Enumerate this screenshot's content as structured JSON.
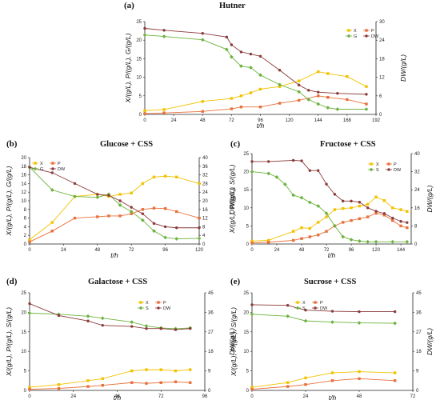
{
  "colors": {
    "X": "#f2c200",
    "P": "#e8703a",
    "G": "#6db33f",
    "DW": "#8b3a3a"
  },
  "chart_data": [
    {
      "id": "a",
      "letter": "(a)",
      "title": "Hutner",
      "type": "line",
      "xlabel": "t/h",
      "ylabel": "X/(g/L), P/(g/L), G/(g/L)",
      "y2label": "DW/(g/L)",
      "xticks": [
        0,
        24,
        48,
        72,
        96,
        120,
        144,
        168,
        192
      ],
      "yticks": [
        0,
        5,
        10,
        15,
        20,
        25
      ],
      "y2ticks": [
        0,
        6,
        12,
        18,
        24,
        30
      ],
      "xlim": [
        0,
        192
      ],
      "ylim": [
        0,
        25
      ],
      "y2lim": [
        0,
        30
      ],
      "legend_position": "top-right",
      "series": [
        {
          "name": "X",
          "color": "X",
          "axis": "left",
          "x": [
            0,
            16,
            48,
            72,
            80,
            88,
            96,
            112,
            128,
            144,
            152,
            168,
            184
          ],
          "y": [
            1.0,
            1.3,
            3.5,
            4.3,
            5.0,
            5.8,
            6.8,
            7.5,
            9.0,
            11.5,
            11.0,
            10.2,
            7.5
          ]
        },
        {
          "name": "P",
          "color": "P",
          "axis": "left",
          "x": [
            0,
            16,
            48,
            72,
            80,
            96,
            112,
            128,
            144,
            152,
            168,
            184
          ],
          "y": [
            0.2,
            0.4,
            0.8,
            1.5,
            2.0,
            2.0,
            3.0,
            3.8,
            5.0,
            4.6,
            4.0,
            2.8
          ]
        },
        {
          "name": "G",
          "color": "G",
          "axis": "left",
          "x": [
            0,
            16,
            48,
            68,
            72,
            80,
            88,
            96,
            112,
            128,
            136,
            144,
            152,
            160,
            184
          ],
          "y": [
            21.4,
            21.0,
            20.1,
            17.5,
            15.5,
            13.0,
            12.6,
            10.6,
            8.0,
            6.1,
            4.0,
            2.8,
            1.8,
            1.4,
            1.4
          ]
        },
        {
          "name": "DW",
          "color": "DW",
          "axis": "right",
          "x": [
            0,
            16,
            48,
            68,
            72,
            80,
            88,
            96,
            112,
            128,
            136,
            144,
            160,
            184
          ],
          "y": [
            27.8,
            27.2,
            26.2,
            25.0,
            22.5,
            20.2,
            19.5,
            18.8,
            14.3,
            9.5,
            7.8,
            7.2,
            6.8,
            6.5
          ]
        }
      ]
    },
    {
      "id": "b",
      "letter": "(b)",
      "title": "Glucose + CSS",
      "type": "line",
      "xlabel": "t/h",
      "ylabel": "X/(g/L), P/(g/L), G/(g/L)",
      "y2label": "DW/(g/L)",
      "xticks": [
        0,
        24,
        48,
        72,
        96,
        120
      ],
      "yticks": [
        0,
        2,
        4,
        6,
        8,
        10,
        12,
        14,
        16,
        18,
        20
      ],
      "y2ticks": [
        0,
        4,
        8,
        12,
        16,
        20,
        24,
        28,
        32,
        36,
        40
      ],
      "xlim": [
        0,
        120
      ],
      "ylim": [
        0,
        20
      ],
      "y2lim": [
        0,
        40
      ],
      "legend_position": "top-left",
      "series": [
        {
          "name": "X",
          "color": "X",
          "axis": "left",
          "x": [
            0,
            16,
            32,
            48,
            56,
            64,
            72,
            80,
            88,
            96,
            104,
            120
          ],
          "y": [
            1.0,
            5.0,
            11.0,
            11.5,
            11.0,
            11.5,
            11.8,
            14.0,
            15.5,
            15.7,
            15.5,
            14.0
          ]
        },
        {
          "name": "P",
          "color": "P",
          "axis": "left",
          "x": [
            0,
            16,
            32,
            48,
            56,
            64,
            72,
            80,
            88,
            96,
            104,
            120
          ],
          "y": [
            0.5,
            3.0,
            6.0,
            6.3,
            6.5,
            6.5,
            7.0,
            8.0,
            8.3,
            8.2,
            7.5,
            6.0
          ]
        },
        {
          "name": "G",
          "color": "G",
          "axis": "left",
          "x": [
            0,
            16,
            32,
            48,
            56,
            64,
            72,
            80,
            88,
            96,
            104,
            120
          ],
          "y": [
            17.8,
            12.5,
            11.0,
            10.8,
            11.5,
            9.0,
            7.5,
            5.5,
            3.0,
            1.5,
            1.2,
            1.3
          ]
        },
        {
          "name": "DW",
          "color": "DW",
          "axis": "right",
          "x": [
            0,
            16,
            32,
            48,
            56,
            64,
            72,
            80,
            88,
            96,
            104,
            120
          ],
          "y": [
            35.5,
            33.0,
            28.0,
            23.0,
            22.5,
            20.0,
            17.0,
            14.0,
            9.5,
            8.0,
            7.5,
            7.5
          ]
        }
      ]
    },
    {
      "id": "c",
      "letter": "(c)",
      "title": "Fructose + CSS",
      "type": "line",
      "xlabel": "t/h",
      "ylabel": "X/(g/L), P/(g/L), S/(g/L)",
      "y2label": "DW/(g/L)",
      "xticks": [
        0,
        24,
        48,
        72,
        96,
        120,
        144
      ],
      "yticks": [
        0,
        5,
        10,
        15,
        20,
        25
      ],
      "y2ticks": [
        0,
        8,
        16,
        24,
        32,
        40
      ],
      "xlim": [
        0,
        154
      ],
      "ylim": [
        0,
        25
      ],
      "y2lim": [
        0,
        40
      ],
      "legend_position": "top-right",
      "series": [
        {
          "name": "X",
          "color": "X",
          "axis": "left",
          "x": [
            0,
            16,
            40,
            48,
            56,
            64,
            72,
            80,
            88,
            96,
            104,
            112,
            120,
            128,
            136,
            144,
            150
          ],
          "y": [
            0.8,
            1.0,
            3.5,
            4.5,
            4.3,
            6.0,
            7.5,
            9.5,
            9.8,
            10.0,
            10.5,
            11.0,
            13.0,
            12.0,
            10.0,
            9.5,
            9.0
          ]
        },
        {
          "name": "P",
          "color": "P",
          "axis": "left",
          "x": [
            0,
            16,
            40,
            48,
            56,
            64,
            72,
            80,
            88,
            96,
            104,
            112,
            120,
            128,
            136,
            144,
            150
          ],
          "y": [
            0.3,
            0.5,
            1.0,
            1.5,
            2.0,
            2.5,
            3.5,
            5.0,
            6.0,
            6.5,
            7.0,
            7.5,
            8.5,
            8.0,
            6.5,
            5.0,
            4.5
          ]
        },
        {
          "name": "S",
          "color": "G",
          "axis": "left",
          "x": [
            0,
            16,
            24,
            32,
            40,
            48,
            56,
            64,
            72,
            80,
            88,
            96,
            104,
            112,
            120,
            136,
            150
          ],
          "y": [
            20.0,
            19.5,
            18.5,
            16.5,
            13.5,
            12.8,
            11.5,
            10.5,
            8.5,
            5.0,
            2.0,
            1.2,
            0.8,
            0.6,
            0.6,
            0.6,
            0.6
          ]
        },
        {
          "name": "DW",
          "color": "DW",
          "axis": "right",
          "x": [
            0,
            16,
            40,
            48,
            56,
            64,
            72,
            80,
            88,
            96,
            104,
            112,
            120,
            128,
            136,
            144,
            150
          ],
          "y": [
            36.5,
            36.5,
            37.0,
            36.8,
            32.5,
            32.5,
            26.5,
            22.0,
            19.0,
            19.0,
            18.5,
            16.0,
            14.5,
            13.5,
            11.5,
            10.0,
            9.5
          ]
        }
      ]
    },
    {
      "id": "d",
      "letter": "(d)",
      "title": "Galactose + CSS",
      "type": "line",
      "xlabel": "t/h",
      "ylabel": "X/(g/L), P/(g/L), S/(g/L)",
      "y2label": "DW/(g/L)",
      "xticks": [
        0,
        24,
        48,
        72,
        96
      ],
      "yticks": [
        0,
        5,
        10,
        15,
        20,
        25
      ],
      "y2ticks": [
        0,
        9,
        18,
        27,
        36,
        45
      ],
      "xlim": [
        0,
        96
      ],
      "ylim": [
        0,
        25
      ],
      "y2lim": [
        0,
        45
      ],
      "legend_position": "top-right",
      "series": [
        {
          "name": "X",
          "color": "X",
          "axis": "left",
          "x": [
            0,
            16,
            32,
            40,
            56,
            64,
            72,
            80,
            88
          ],
          "y": [
            0.8,
            1.5,
            2.5,
            3.0,
            5.0,
            5.3,
            5.3,
            5.0,
            5.3
          ]
        },
        {
          "name": "P",
          "color": "P",
          "axis": "left",
          "x": [
            0,
            16,
            32,
            40,
            56,
            64,
            72,
            80,
            88
          ],
          "y": [
            0.3,
            0.5,
            1.0,
            1.3,
            2.0,
            1.8,
            2.0,
            2.2,
            2.0
          ]
        },
        {
          "name": "S",
          "color": "G",
          "axis": "left",
          "x": [
            0,
            16,
            32,
            40,
            56,
            64,
            72,
            80,
            88
          ],
          "y": [
            19.8,
            19.5,
            19.0,
            18.5,
            17.5,
            16.5,
            16.0,
            15.8,
            16.0
          ]
        },
        {
          "name": "DW",
          "color": "DW",
          "axis": "right",
          "x": [
            0,
            16,
            32,
            40,
            56,
            64,
            72,
            80,
            88
          ],
          "y": [
            40.0,
            34.5,
            32.0,
            30.0,
            29.5,
            28.5,
            28.5,
            28.0,
            28.5
          ]
        }
      ]
    },
    {
      "id": "e",
      "letter": "(e)",
      "title": "Sucrose + CSS",
      "type": "line",
      "xlabel": "t/h",
      "ylabel": "X/(g/L), P/(g/L), S/(g/L)",
      "y2label": "DW/(g/L)",
      "xticks": [
        0,
        24,
        48,
        72
      ],
      "yticks": [
        0,
        5,
        10,
        15,
        20,
        25
      ],
      "y2ticks": [
        0,
        9,
        18,
        27,
        36,
        45
      ],
      "xlim": [
        0,
        72
      ],
      "ylim": [
        0,
        25
      ],
      "y2lim": [
        0,
        45
      ],
      "legend_position": "top-center",
      "series": [
        {
          "name": "X",
          "color": "X",
          "axis": "left",
          "x": [
            0,
            16,
            24,
            36,
            48,
            64
          ],
          "y": [
            0.8,
            2.0,
            3.2,
            4.5,
            4.8,
            4.5
          ]
        },
        {
          "name": "P",
          "color": "P",
          "axis": "left",
          "x": [
            0,
            16,
            24,
            36,
            48,
            64
          ],
          "y": [
            0.3,
            1.0,
            1.5,
            2.5,
            3.0,
            2.5
          ]
        },
        {
          "name": "S",
          "color": "G",
          "axis": "left",
          "x": [
            0,
            16,
            24,
            36,
            48,
            64
          ],
          "y": [
            19.5,
            19.0,
            17.8,
            17.5,
            17.3,
            17.2
          ]
        },
        {
          "name": "DW",
          "color": "DW",
          "axis": "right",
          "x": [
            0,
            16,
            24,
            36,
            48,
            64
          ],
          "y": [
            39.5,
            39.2,
            37.0,
            36.5,
            36.3,
            36.3
          ]
        }
      ]
    }
  ]
}
